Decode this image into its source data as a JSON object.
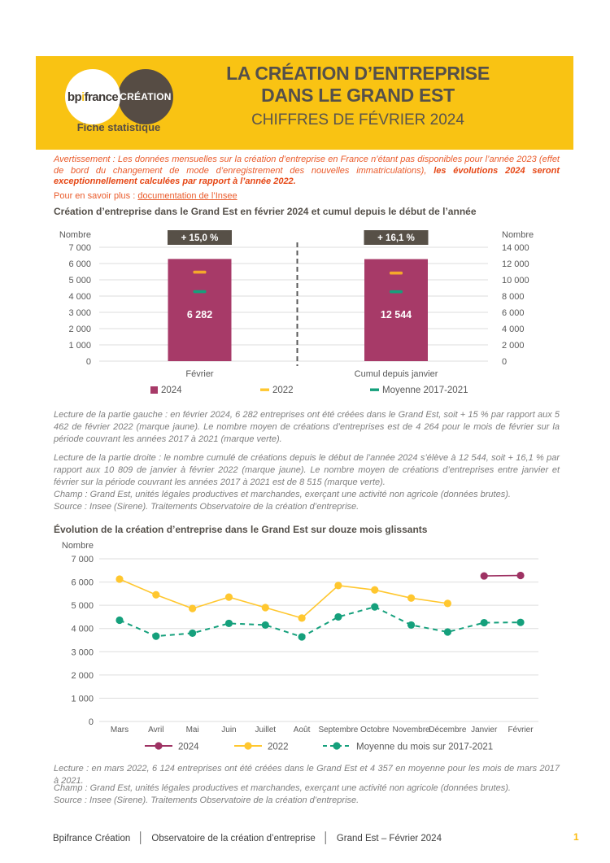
{
  "header": {
    "logo_primary": "bpifrance",
    "logo_secondary": "CRÉATION",
    "tagline": "Fiche statistique",
    "title_line1": "LA CRÉATION D’ENTREPRISE",
    "title_line2": "DANS LE GRAND EST",
    "subtitle": "CHIFFRES DE FÉVRIER 2024"
  },
  "notice": {
    "warning_normal": "Avertissement : Les données mensuelles sur la création d’entreprise en France n’étant pas disponibles pour l’année 2023 (effet de bord du changement de mode d’enregistrement des nouvelles immatriculations), ",
    "warning_bold": "les évolutions 2024 seront exceptionnellement calculées par rapport à l’année 2022.",
    "more_info_label": "Pour en savoir plus : ",
    "more_info_link": "documentation de l’Insee"
  },
  "section1": {
    "title": "Création d’entreprise dans le Grand Est en février 2024 et cumul depuis le début de l’année",
    "lecture_left": "Lecture de la partie gauche : en février 2024, 6 282 entreprises ont été créées dans le Grand Est, soit + 15 % par rapport aux 5 462 de février 2022 (marque jaune). Le nombre moyen de créations d’entreprises est de 4 264 pour le mois de février sur la période couvrant les années 2017 à 2021 (marque verte).",
    "lecture_right": "Lecture de la partie droite : le nombre cumulé de créations depuis le début de l’année 2024 s’élève à 12 544, soit + 16,1 % par rapport aux 10 809 de janvier à février 2022 (marque jaune). Le nombre moyen de créations d’entreprises entre janvier et février sur la période couvrant les années 2017 à 2021 est de 8 515 (marque verte).",
    "champ": "Champ : Grand Est, unités légales productives et marchandes, exerçant une activité non agricole (données brutes).",
    "source": "Source : Insee (Sirene). Traitements Observatoire de la création d’entreprise."
  },
  "section2": {
    "title": "Évolution de la création d’entreprise dans le Grand Est sur douze mois glissants",
    "lecture": "Lecture : en mars 2022, 6 124 entreprises ont été créées dans le Grand Est et 4 357 en moyenne pour les mois de mars 2017 à 2021.",
    "champ": "Champ : Grand Est, unités légales productives et marchandes, exerçant une activité non agricole (données brutes).",
    "source": "Source : Insee (Sirene). Traitements Observatoire de la création d’entreprise."
  },
  "footer": {
    "brand": "Bpifrance Création",
    "org": "Observatoire de la création d’entreprise",
    "context": "Grand Est – Février 2024",
    "page": "1"
  },
  "colors": {
    "header_yellow": "#F9C313",
    "brand_brown": "#564C44",
    "magenta": "#A73A68",
    "magenta_line": "#9E3263",
    "marker_yellow": "#F5A82B",
    "line_yellow": "#FFC72F",
    "line_green": "#15A07C",
    "badge_bg": "#575047",
    "grid_gray": "#DEDEDE",
    "axis_gray": "#595959",
    "text_orange": "#EA5B2B",
    "text_gray": "#7F7F7F",
    "page_number_yellow": "#FBBB0E"
  },
  "chart_data": [
    {
      "type": "bar",
      "title": "Création d’entreprise dans le Grand Est en février 2024 et cumul depuis le début de l’année",
      "axis_label_left": "Nombre",
      "axis_label_right": "Nombre",
      "ylim_left": [
        0,
        7000
      ],
      "ylim_right": [
        0,
        14000
      ],
      "left_ticks": [
        "7 000",
        "6 000",
        "5 000",
        "4 000",
        "3 000",
        "2 000",
        "1 000",
        "0"
      ],
      "right_ticks": [
        "14 000",
        "12 000",
        "10 000",
        "8 000",
        "6 000",
        "4 000",
        "2 000",
        "0"
      ],
      "categories": [
        "Février",
        "Cumul depuis janvier"
      ],
      "bars_2024": [
        6282,
        12544
      ],
      "bar_labels": [
        "6 282",
        "12 544"
      ],
      "badges": [
        "+ 15,0 %",
        "+ 16,1 %"
      ],
      "markers_2022": [
        5462,
        10809
      ],
      "markers_moyenne_2017_2021": [
        4264,
        8515
      ],
      "legend": [
        "2024",
        "2022",
        "Moyenne 2017-2021"
      ],
      "grid": true
    },
    {
      "type": "line",
      "title": "Évolution de la création d’entreprise dans le Grand Est sur douze mois glissants",
      "ylabel": "Nombre",
      "ylim": [
        0,
        7000
      ],
      "yticks": [
        "7 000",
        "6 000",
        "5 000",
        "4 000",
        "3 000",
        "2 000",
        "1 000",
        "0"
      ],
      "categories": [
        "Mars",
        "Avril",
        "Mai",
        "Juin",
        "Juillet",
        "Août",
        "Septembre",
        "Octobre",
        "Novembre",
        "Décembre",
        "Janvier",
        "Février"
      ],
      "series": [
        {
          "name": "2024",
          "style": "solid",
          "values": [
            null,
            null,
            null,
            null,
            null,
            null,
            null,
            null,
            null,
            null,
            6262,
            6282
          ]
        },
        {
          "name": "2022",
          "style": "solid",
          "values": [
            6124,
            5450,
            4860,
            5350,
            4900,
            4450,
            5850,
            5660,
            5310,
            5080,
            null,
            null
          ]
        },
        {
          "name": "Moyenne du mois sur 2017-2021",
          "style": "dashed",
          "values": [
            4357,
            3670,
            3800,
            4220,
            4150,
            3640,
            4500,
            4930,
            4150,
            3850,
            4251,
            4264
          ]
        }
      ],
      "legend": [
        "2024",
        "2022",
        "Moyenne du mois sur 2017-2021"
      ],
      "legend_position": "bottom",
      "grid": true
    }
  ]
}
